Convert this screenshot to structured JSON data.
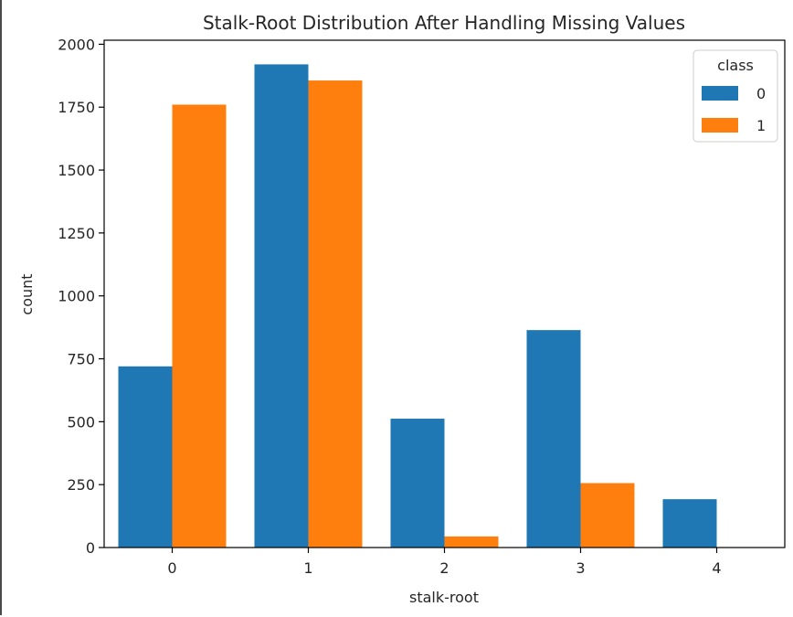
{
  "chart_data": {
    "type": "bar",
    "title": "Stalk-Root Distribution After Handling Missing Values",
    "xlabel": "stalk-root",
    "ylabel": "count",
    "categories": [
      "0",
      "1",
      "2",
      "3",
      "4"
    ],
    "series": [
      {
        "name": "0",
        "values": [
          720,
          1920,
          512,
          864,
          192
        ],
        "color": "#1f77b4"
      },
      {
        "name": "1",
        "values": [
          1760,
          1856,
          44,
          256,
          0
        ],
        "color": "#ff7f0e"
      }
    ],
    "ylim": [
      0,
      2016
    ],
    "yticks": [
      0,
      250,
      500,
      750,
      1000,
      1250,
      1500,
      1750,
      2000
    ],
    "legend": {
      "title": "class",
      "placement": "top-right"
    },
    "grid": false
  }
}
